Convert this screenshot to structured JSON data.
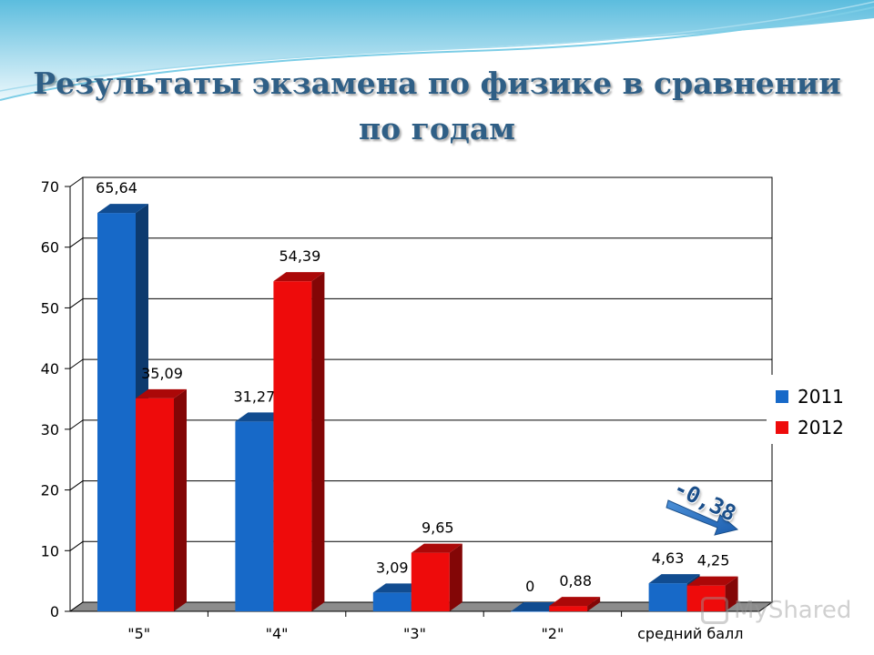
{
  "title_line1": "Результаты экзамена по физике в сравнении",
  "title_line2": "по годам",
  "colors": {
    "series_2011": "#1769c8",
    "series_2012": "#ee0b0b",
    "title": "#2f5f86"
  },
  "annotation": {
    "text": "-0,38",
    "icon": "arrow-down-right-icon"
  },
  "watermark": "MyShared",
  "chart_data": {
    "type": "bar",
    "categories": [
      "\"5\"",
      "\"4\"",
      "\"3\"",
      "\"2\"",
      "средний балл"
    ],
    "series": [
      {
        "name": "2011",
        "values": [
          65.64,
          31.27,
          3.09,
          0,
          4.63
        ],
        "labels": [
          "65,64",
          "31,27",
          "3,09",
          "0",
          "4,63"
        ]
      },
      {
        "name": "2012",
        "values": [
          35.09,
          54.39,
          9.65,
          0.88,
          4.25
        ],
        "labels": [
          "35,09",
          "54,39",
          "9,65",
          "0,88",
          "4,25"
        ]
      }
    ],
    "ylim": [
      0,
      70
    ],
    "yticks": [
      "0",
      "10",
      "20",
      "30",
      "40",
      "50",
      "60",
      "70"
    ],
    "grid": true,
    "legend_position": "right",
    "style": "3d"
  }
}
